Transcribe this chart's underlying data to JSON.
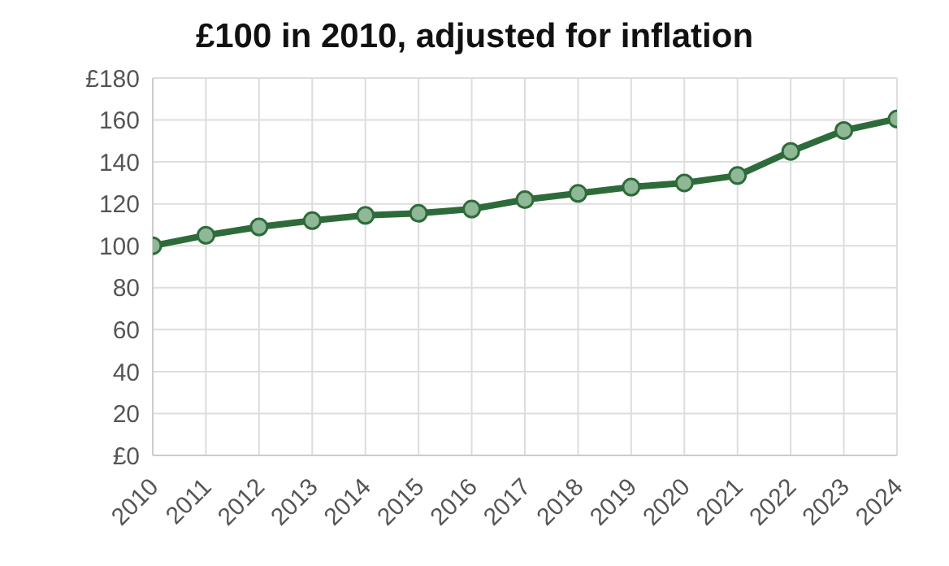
{
  "chart_data": {
    "type": "line",
    "title": "£100 in 2010, adjusted for inflation",
    "categories": [
      "2010",
      "2011",
      "2012",
      "2013",
      "2014",
      "2015",
      "2016",
      "2017",
      "2018",
      "2019",
      "2020",
      "2021",
      "2022",
      "2023",
      "2024"
    ],
    "series": [
      {
        "color": "#2e6b3a",
        "values": [
          100,
          105,
          109,
          112,
          114.5,
          115.5,
          117.5,
          122,
          125,
          128,
          130,
          133.5,
          145,
          155,
          160.5
        ]
      }
    ],
    "ylim": [
      0,
      180
    ],
    "yticks": [
      {
        "value": 0,
        "label": "£0"
      },
      20,
      40,
      60,
      80,
      100,
      120,
      140,
      160,
      {
        "value": 180,
        "label": "£180"
      }
    ],
    "grid": true,
    "marker": "circle",
    "line_style": "solid"
  }
}
